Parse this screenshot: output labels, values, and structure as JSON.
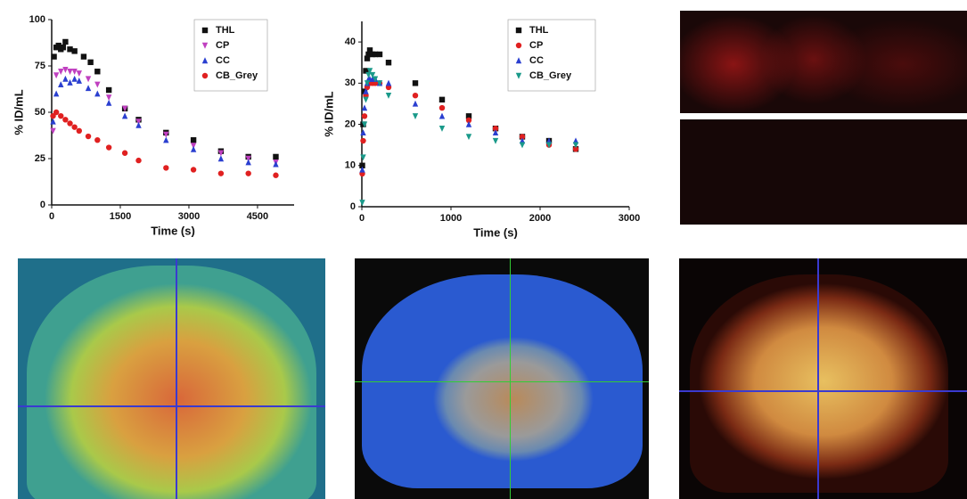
{
  "chart_data": [
    {
      "type": "scatter",
      "xlabel": "Time (s)",
      "ylabel": "% ID/mL",
      "xlim": [
        0,
        5300
      ],
      "xticks": [
        0,
        1500,
        3000,
        4500
      ],
      "ylim": [
        0,
        100
      ],
      "yticks": [
        0,
        25,
        50,
        75,
        100
      ],
      "series": [
        {
          "name": "THL",
          "color": "#111111",
          "marker": "square",
          "x": [
            50,
            100,
            150,
            200,
            250,
            300,
            400,
            500,
            700,
            850,
            1000,
            1250,
            1600,
            1900,
            2500,
            3100,
            3700,
            4300,
            4900
          ],
          "values": [
            80,
            85,
            86,
            84,
            85,
            88,
            84,
            83,
            80,
            77,
            72,
            62,
            52,
            46,
            39,
            35,
            29,
            26,
            26
          ]
        },
        {
          "name": "CP",
          "color": "#c040c0",
          "marker": "triangle-down",
          "x": [
            30,
            100,
            200,
            300,
            400,
            500,
            600,
            800,
            1000,
            1250,
            1600,
            1900,
            2500,
            3100,
            3700,
            4300,
            4900
          ],
          "values": [
            40,
            70,
            72,
            73,
            72,
            72,
            71,
            68,
            65,
            58,
            52,
            45,
            38,
            32,
            28,
            25,
            23
          ]
        },
        {
          "name": "CC",
          "color": "#2a3fd0",
          "marker": "triangle-up",
          "x": [
            30,
            100,
            200,
            300,
            400,
            500,
            600,
            800,
            1000,
            1250,
            1600,
            1900,
            2500,
            3100,
            3700,
            4300,
            4900
          ],
          "values": [
            45,
            60,
            65,
            68,
            66,
            68,
            67,
            63,
            60,
            55,
            48,
            43,
            35,
            30,
            25,
            23,
            22
          ]
        },
        {
          "name": "CB_Grey",
          "color": "#e02020",
          "marker": "circle",
          "x": [
            30,
            100,
            200,
            300,
            400,
            500,
            600,
            800,
            1000,
            1250,
            1600,
            1900,
            2500,
            3100,
            3700,
            4300,
            4900
          ],
          "values": [
            48,
            50,
            48,
            46,
            44,
            42,
            40,
            37,
            35,
            31,
            28,
            24,
            20,
            19,
            17,
            17,
            16
          ]
        }
      ]
    },
    {
      "type": "scatter",
      "xlabel": "Time (s)",
      "ylabel": "% ID/mL",
      "xlim": [
        0,
        3000
      ],
      "xticks": [
        0,
        1000,
        2000,
        3000
      ],
      "ylim": [
        0,
        45
      ],
      "yticks": [
        0,
        10,
        20,
        30,
        40
      ],
      "series": [
        {
          "name": "THL",
          "color": "#111111",
          "marker": "square",
          "x": [
            5,
            15,
            30,
            45,
            60,
            75,
            90,
            120,
            150,
            200,
            300,
            600,
            900,
            1200,
            1500,
            1800,
            2100,
            2400
          ],
          "values": [
            10,
            20,
            28,
            33,
            36,
            37,
            38,
            37,
            37,
            37,
            35,
            30,
            26,
            22,
            19,
            17,
            16,
            14
          ]
        },
        {
          "name": "CP",
          "color": "#e02020",
          "marker": "circle",
          "x": [
            5,
            15,
            30,
            45,
            60,
            75,
            90,
            120,
            150,
            200,
            300,
            600,
            900,
            1200,
            1500,
            1800,
            2100,
            2400
          ],
          "values": [
            8,
            16,
            22,
            27,
            29,
            30,
            30,
            30,
            30,
            30,
            29,
            27,
            24,
            21,
            19,
            17,
            15,
            14
          ]
        },
        {
          "name": "CC",
          "color": "#2a3fd0",
          "marker": "triangle-up",
          "x": [
            5,
            15,
            30,
            45,
            60,
            75,
            90,
            120,
            150,
            200,
            300,
            600,
            900,
            1200,
            1500,
            1800,
            2100,
            2400
          ],
          "values": [
            9,
            18,
            24,
            28,
            30,
            31,
            31,
            31,
            31,
            30,
            30,
            25,
            22,
            20,
            18,
            16,
            16,
            16
          ]
        },
        {
          "name": "CB_Grey",
          "color": "#1a9a8a",
          "marker": "triangle-down",
          "x": [
            5,
            15,
            30,
            45,
            60,
            75,
            90,
            120,
            150,
            200,
            300,
            600,
            900,
            1200,
            1500,
            1800,
            2100,
            2400
          ],
          "values": [
            1,
            12,
            20,
            26,
            30,
            32,
            33,
            32,
            31,
            30,
            27,
            22,
            19,
            17,
            16,
            15,
            15,
            15
          ]
        }
      ]
    }
  ]
}
